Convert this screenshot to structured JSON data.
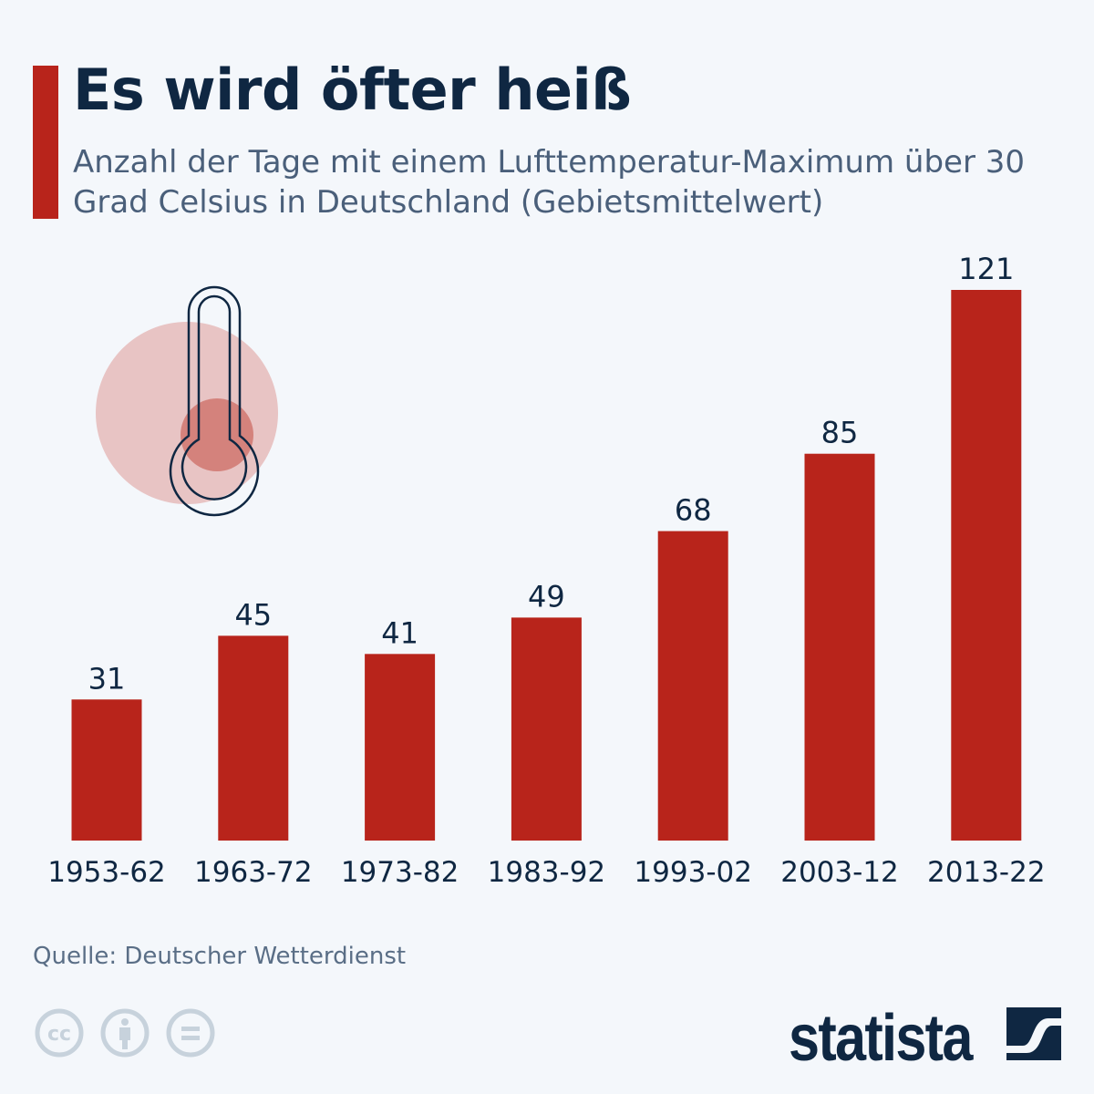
{
  "header": {
    "title": "Es wird öfter heiß",
    "subtitle": "Anzahl der Tage mit einem Lufttemperatur-Maximum über 30 Grad Celsius in Deutschland (Gebietsmittelwert)"
  },
  "chart_data": {
    "type": "bar",
    "title": "Es wird öfter heiß",
    "subtitle": "Anzahl der Tage mit einem Lufttemperatur-Maximum über 30 Grad Celsius in Deutschland (Gebietsmittelwert)",
    "categories": [
      "1953-62",
      "1963-72",
      "1973-82",
      "1983-92",
      "1993-02",
      "2003-12",
      "2013-22"
    ],
    "values": [
      31,
      45,
      41,
      49,
      68,
      85,
      121
    ],
    "xlabel": "",
    "ylabel": "",
    "ylim": [
      0,
      121
    ],
    "grid": false,
    "data_labels": true,
    "bar_color": "#b8241b"
  },
  "footer": {
    "source": "Quelle: Deutscher Wetterdienst",
    "logo": "statista",
    "license_icons": [
      "cc-icon",
      "attribution-icon",
      "no-derivatives-icon"
    ]
  },
  "colors": {
    "accent": "#b8241b",
    "text": "#0f2742",
    "subtitle": "#4a5f7a",
    "background": "#f4f7fb"
  }
}
